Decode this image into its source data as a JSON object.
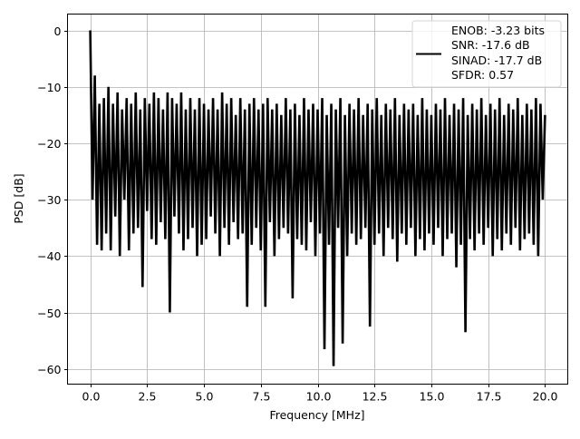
{
  "chart_data": {
    "type": "line",
    "title": "",
    "xlabel": "Frequency [MHz]",
    "ylabel": "PSD [dB]",
    "xlim": [
      -1,
      21
    ],
    "ylim": [
      -62.7,
      2.9
    ],
    "xticks": [
      0.0,
      2.5,
      5.0,
      7.5,
      10.0,
      12.5,
      15.0,
      17.5,
      20.0
    ],
    "xtick_labels": [
      "0.0",
      "2.5",
      "5.0",
      "7.5",
      "10.0",
      "12.5",
      "15.0",
      "17.5",
      "20.0"
    ],
    "yticks": [
      0,
      -10,
      -20,
      -30,
      -40,
      -50,
      -60
    ],
    "ytick_labels": [
      "0",
      "−10",
      "−20",
      "−30",
      "−40",
      "−50",
      "−60"
    ],
    "grid": true,
    "legend_placement": "upper-right",
    "legend_entries": [
      "ENOB: -3.23 bits",
      "SNR: -17.6 dB",
      "SINAD: -17.7 dB",
      "SFDR: 0.57"
    ],
    "series": [
      {
        "color": "#000000",
        "frequency_range_mhz": [
          0,
          20
        ],
        "values": [
          0,
          -30,
          -8,
          -38,
          -13,
          -39,
          -12,
          -36,
          -10,
          -39,
          -13,
          -33,
          -11,
          -40,
          -14,
          -30,
          -12,
          -39,
          -13,
          -36,
          -11,
          -35,
          -14,
          -45.5,
          -12,
          -32,
          -13,
          -37,
          -11,
          -38,
          -12,
          -34,
          -14,
          -37,
          -11,
          -50,
          -12,
          -33,
          -13,
          -36,
          -11,
          -39,
          -14,
          -37,
          -12,
          -35,
          -14,
          -40,
          -12,
          -38,
          -13,
          -37,
          -14,
          -33,
          -12,
          -36,
          -14,
          -40,
          -11,
          -35,
          -13,
          -38,
          -12,
          -34,
          -15,
          -37,
          -12,
          -36,
          -14,
          -49,
          -13,
          -38,
          -12,
          -35,
          -14,
          -39,
          -13,
          -49,
          -12,
          -34,
          -14,
          -40,
          -13,
          -37,
          -15,
          -35,
          -12,
          -36,
          -14,
          -47.5,
          -13,
          -37,
          -15,
          -38,
          -12,
          -39,
          -14,
          -34,
          -13,
          -40,
          -14,
          -36,
          -12,
          -56.5,
          -15,
          -38,
          -13,
          -59.5,
          -14,
          -35,
          -12,
          -55.5,
          -15,
          -40,
          -13,
          -36,
          -14,
          -38,
          -12,
          -37,
          -15,
          -35,
          -13,
          -52.5,
          -14,
          -38,
          -12,
          -36,
          -15,
          -40,
          -13,
          -35,
          -14,
          -37,
          -12,
          -41,
          -15,
          -36,
          -13,
          -38,
          -14,
          -35,
          -13,
          -40,
          -15,
          -37,
          -12,
          -39,
          -14,
          -36,
          -15,
          -38,
          -13,
          -35,
          -14,
          -40,
          -12,
          -37,
          -15,
          -36,
          -13,
          -42,
          -14,
          -38,
          -12,
          -53.5,
          -15,
          -37,
          -13,
          -39,
          -14,
          -36,
          -12,
          -38,
          -15,
          -35,
          -13,
          -40,
          -14,
          -37,
          -12,
          -39,
          -15,
          -36,
          -13,
          -38,
          -14,
          -35,
          -12,
          -39,
          -15,
          -37,
          -13,
          -36,
          -14,
          -38,
          -12,
          -40,
          -13,
          -30,
          -15
        ]
      }
    ]
  }
}
